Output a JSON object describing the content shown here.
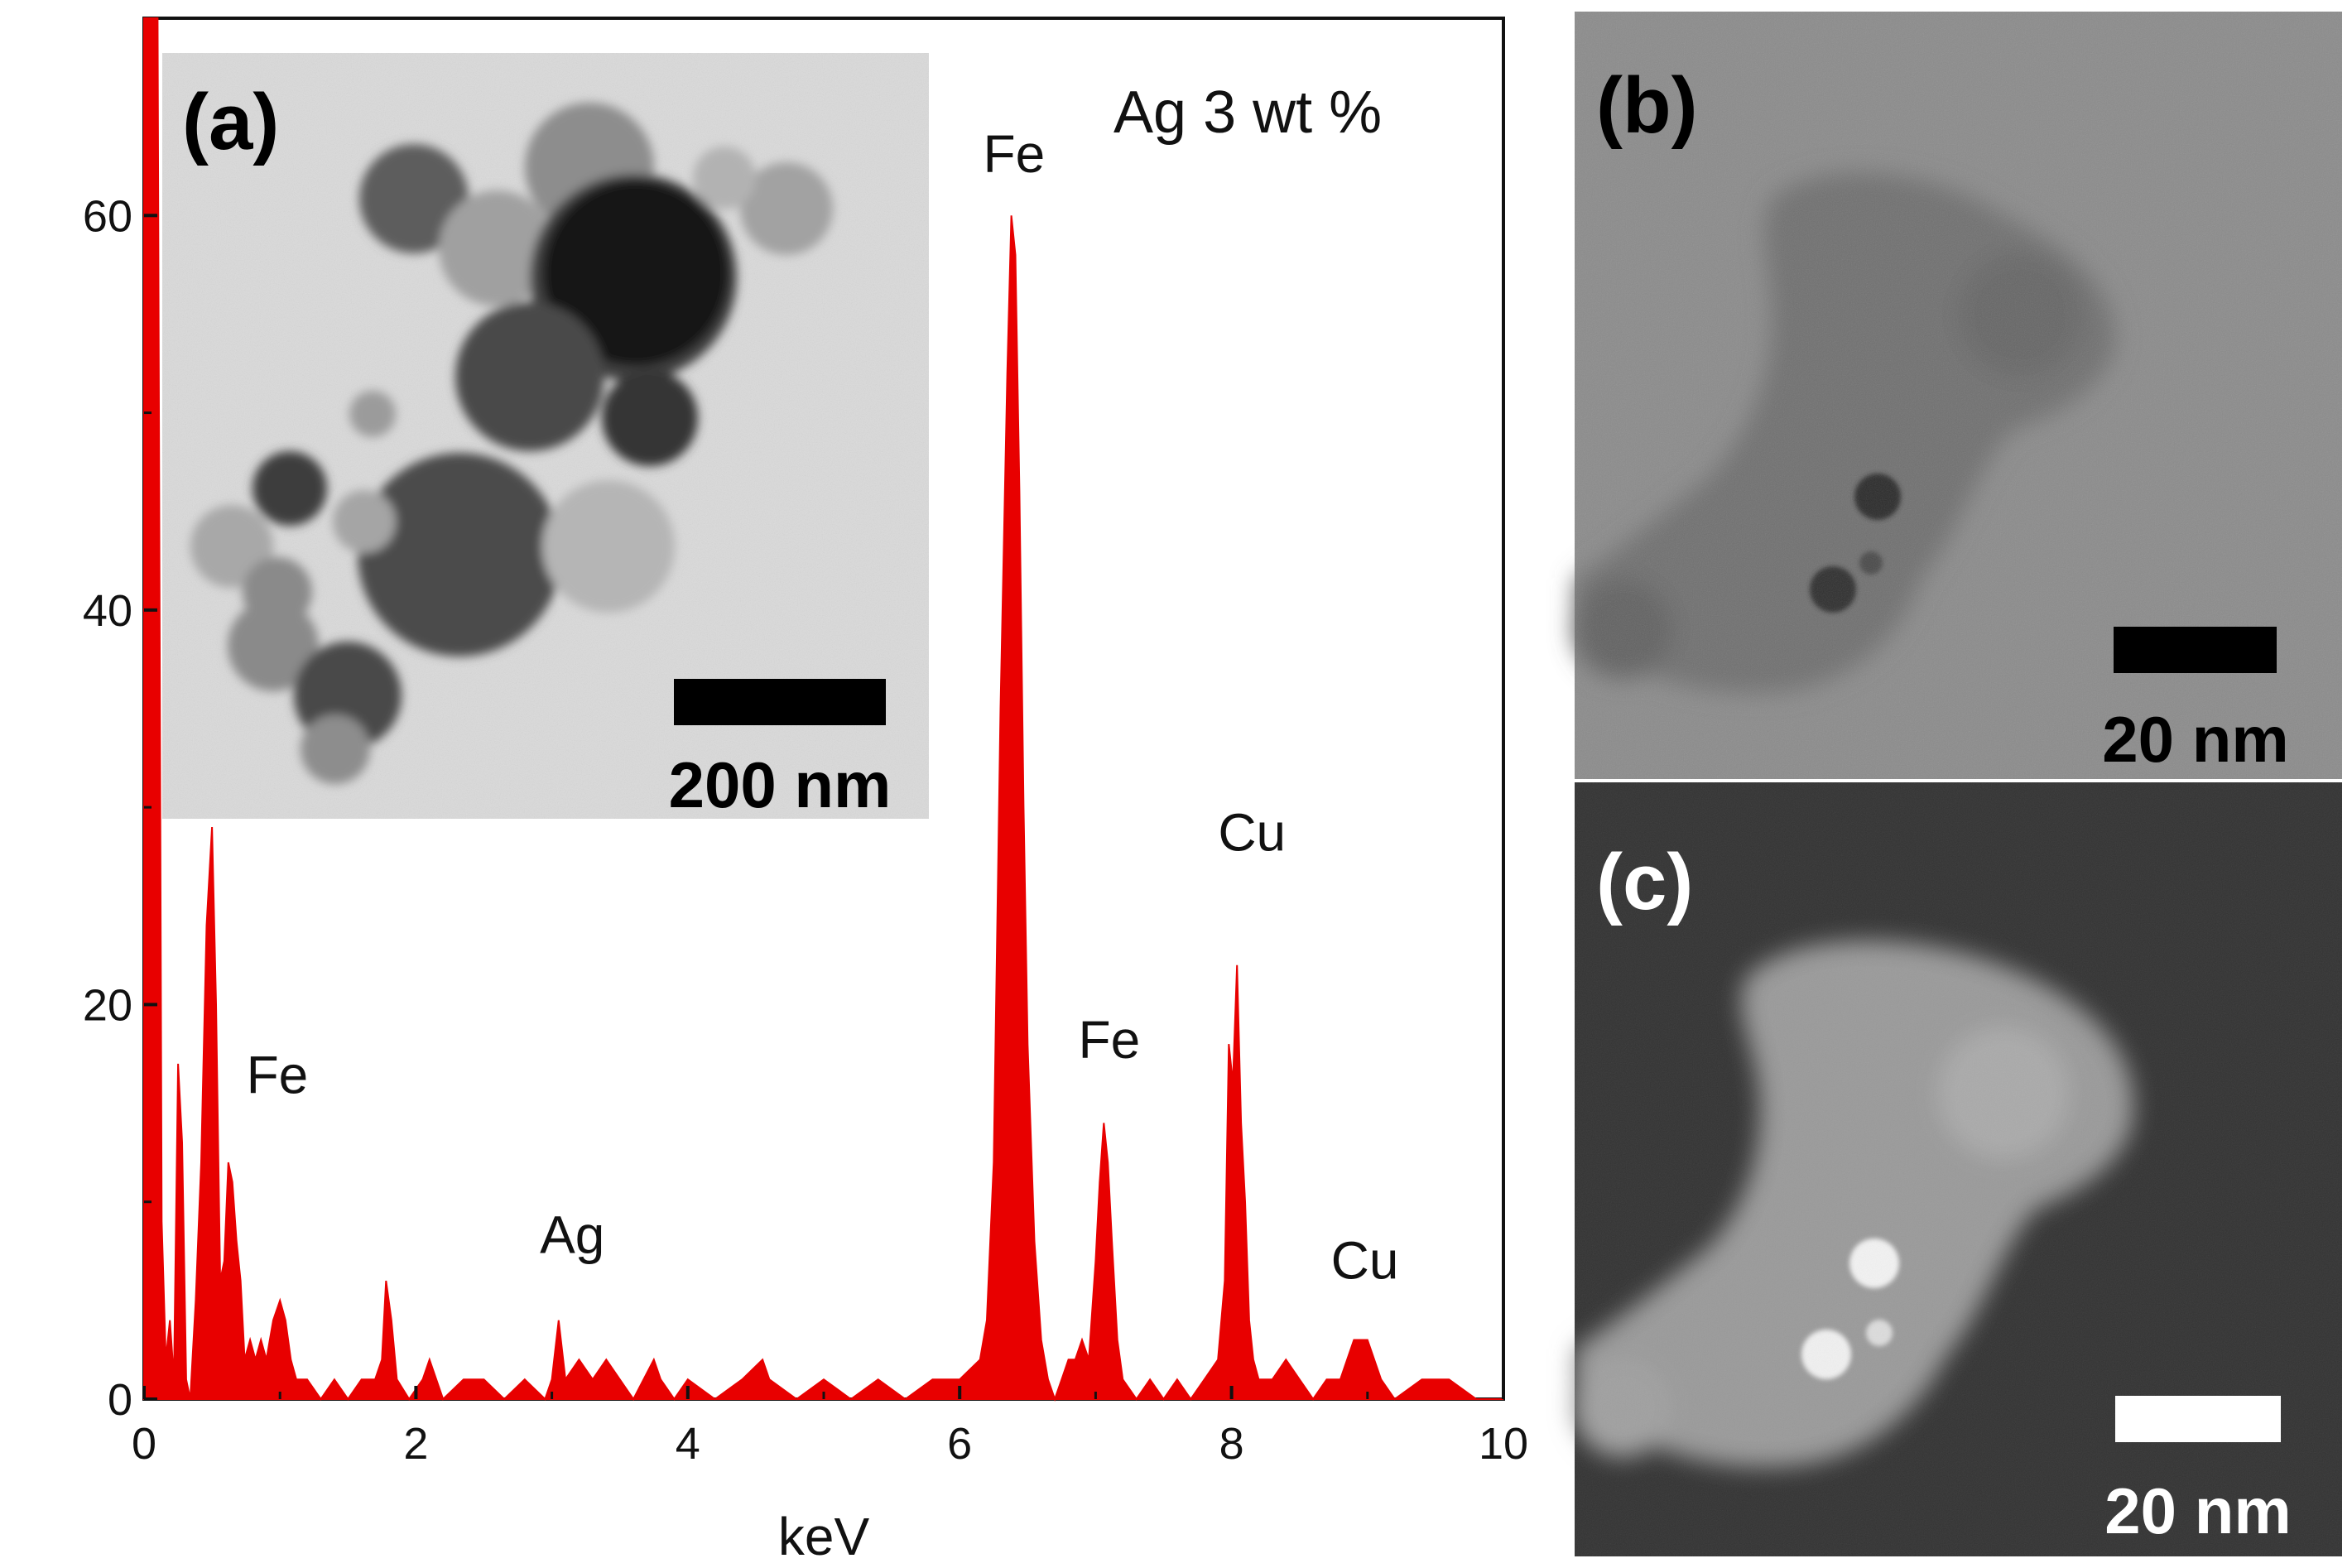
{
  "chart_data": {
    "type": "area",
    "xlabel": "keV",
    "ylabel": "",
    "xlim": [
      0,
      10
    ],
    "ylim": [
      0,
      70
    ],
    "x_ticks": [
      "0",
      "2",
      "4",
      "6",
      "8",
      "10"
    ],
    "y_ticks": [
      "0",
      "20",
      "40",
      "60"
    ],
    "grid": false,
    "series_color": "#e80000",
    "annotation": "Ag 3 wt %",
    "peak_labels": [
      {
        "text": "Fe",
        "x": 0.98,
        "y": 15.5
      },
      {
        "text": "Ag",
        "x": 3.15,
        "y": 7.4
      },
      {
        "text": "Fe",
        "x": 6.4,
        "y": 62.2
      },
      {
        "text": "Fe",
        "x": 7.1,
        "y": 17.3
      },
      {
        "text": "Cu",
        "x": 8.15,
        "y": 27.8
      },
      {
        "text": "Cu",
        "x": 8.98,
        "y": 6.1
      }
    ],
    "series": [
      {
        "x": [
          0.0,
          0.04,
          0.07,
          0.1,
          0.13,
          0.16,
          0.19,
          0.22,
          0.25,
          0.28,
          0.31,
          0.34,
          0.38,
          0.42,
          0.46,
          0.5,
          0.53,
          0.56,
          0.59,
          0.62,
          0.65,
          0.68,
          0.71,
          0.74,
          0.78,
          0.82,
          0.86,
          0.9,
          0.95,
          1.0,
          1.04,
          1.08,
          1.12,
          1.2,
          1.3,
          1.4,
          1.5,
          1.6,
          1.7,
          1.75,
          1.78,
          1.82,
          1.86,
          1.95,
          2.05,
          2.1,
          2.2,
          2.35,
          2.5,
          2.65,
          2.8,
          2.95,
          3.0,
          3.05,
          3.1,
          3.2,
          3.3,
          3.4,
          3.5,
          3.6,
          3.75,
          3.8,
          3.9,
          4.0,
          4.2,
          4.4,
          4.55,
          4.6,
          4.8,
          5.0,
          5.2,
          5.4,
          5.6,
          5.8,
          6.0,
          6.15,
          6.2,
          6.25,
          6.3,
          6.35,
          6.38,
          6.41,
          6.44,
          6.47,
          6.5,
          6.55,
          6.6,
          6.65,
          6.7,
          6.75,
          6.8,
          6.85,
          6.9,
          6.95,
          7.0,
          7.03,
          7.06,
          7.09,
          7.12,
          7.16,
          7.2,
          7.3,
          7.4,
          7.5,
          7.6,
          7.7,
          7.8,
          7.9,
          7.95,
          7.98,
          8.01,
          8.04,
          8.07,
          8.1,
          8.13,
          8.16,
          8.2,
          8.3,
          8.4,
          8.5,
          8.6,
          8.7,
          8.8,
          8.85,
          8.9,
          8.95,
          9.0,
          9.05,
          9.1,
          9.2,
          9.4,
          9.6,
          9.8,
          10.0
        ],
        "y": [
          72,
          72,
          72,
          70,
          9,
          2,
          4,
          1,
          17,
          13,
          1,
          0,
          5,
          12,
          24,
          29,
          20,
          6,
          7,
          12,
          11,
          8,
          6,
          2,
          3,
          2,
          3,
          2,
          4,
          5,
          4,
          2,
          1,
          1,
          0,
          1,
          0,
          1,
          1,
          2,
          6,
          4,
          1,
          0,
          1,
          2,
          0,
          1,
          1,
          0,
          1,
          0,
          1,
          4,
          1,
          2,
          1,
          2,
          1,
          0,
          2,
          1,
          0,
          1,
          0,
          1,
          2,
          1,
          0,
          1,
          0,
          1,
          0,
          1,
          1,
          2,
          4,
          12,
          35,
          52,
          60,
          58,
          46,
          30,
          18,
          8,
          3,
          1,
          0,
          1,
          2,
          2,
          3,
          2,
          7,
          11,
          14,
          12,
          8,
          3,
          1,
          0,
          1,
          0,
          1,
          0,
          1,
          2,
          6,
          18,
          16,
          22,
          14,
          10,
          4,
          2,
          1,
          1,
          2,
          1,
          0,
          1,
          1,
          2,
          3,
          3,
          3,
          2,
          1,
          0,
          1,
          1,
          0,
          0
        ]
      }
    ]
  },
  "panels": {
    "a": {
      "label": "(a)",
      "scale_label": "200 nm"
    },
    "b": {
      "label": "(b)",
      "scale_label": "20 nm"
    },
    "c": {
      "label": "(c)",
      "scale_label": "20 nm"
    }
  }
}
